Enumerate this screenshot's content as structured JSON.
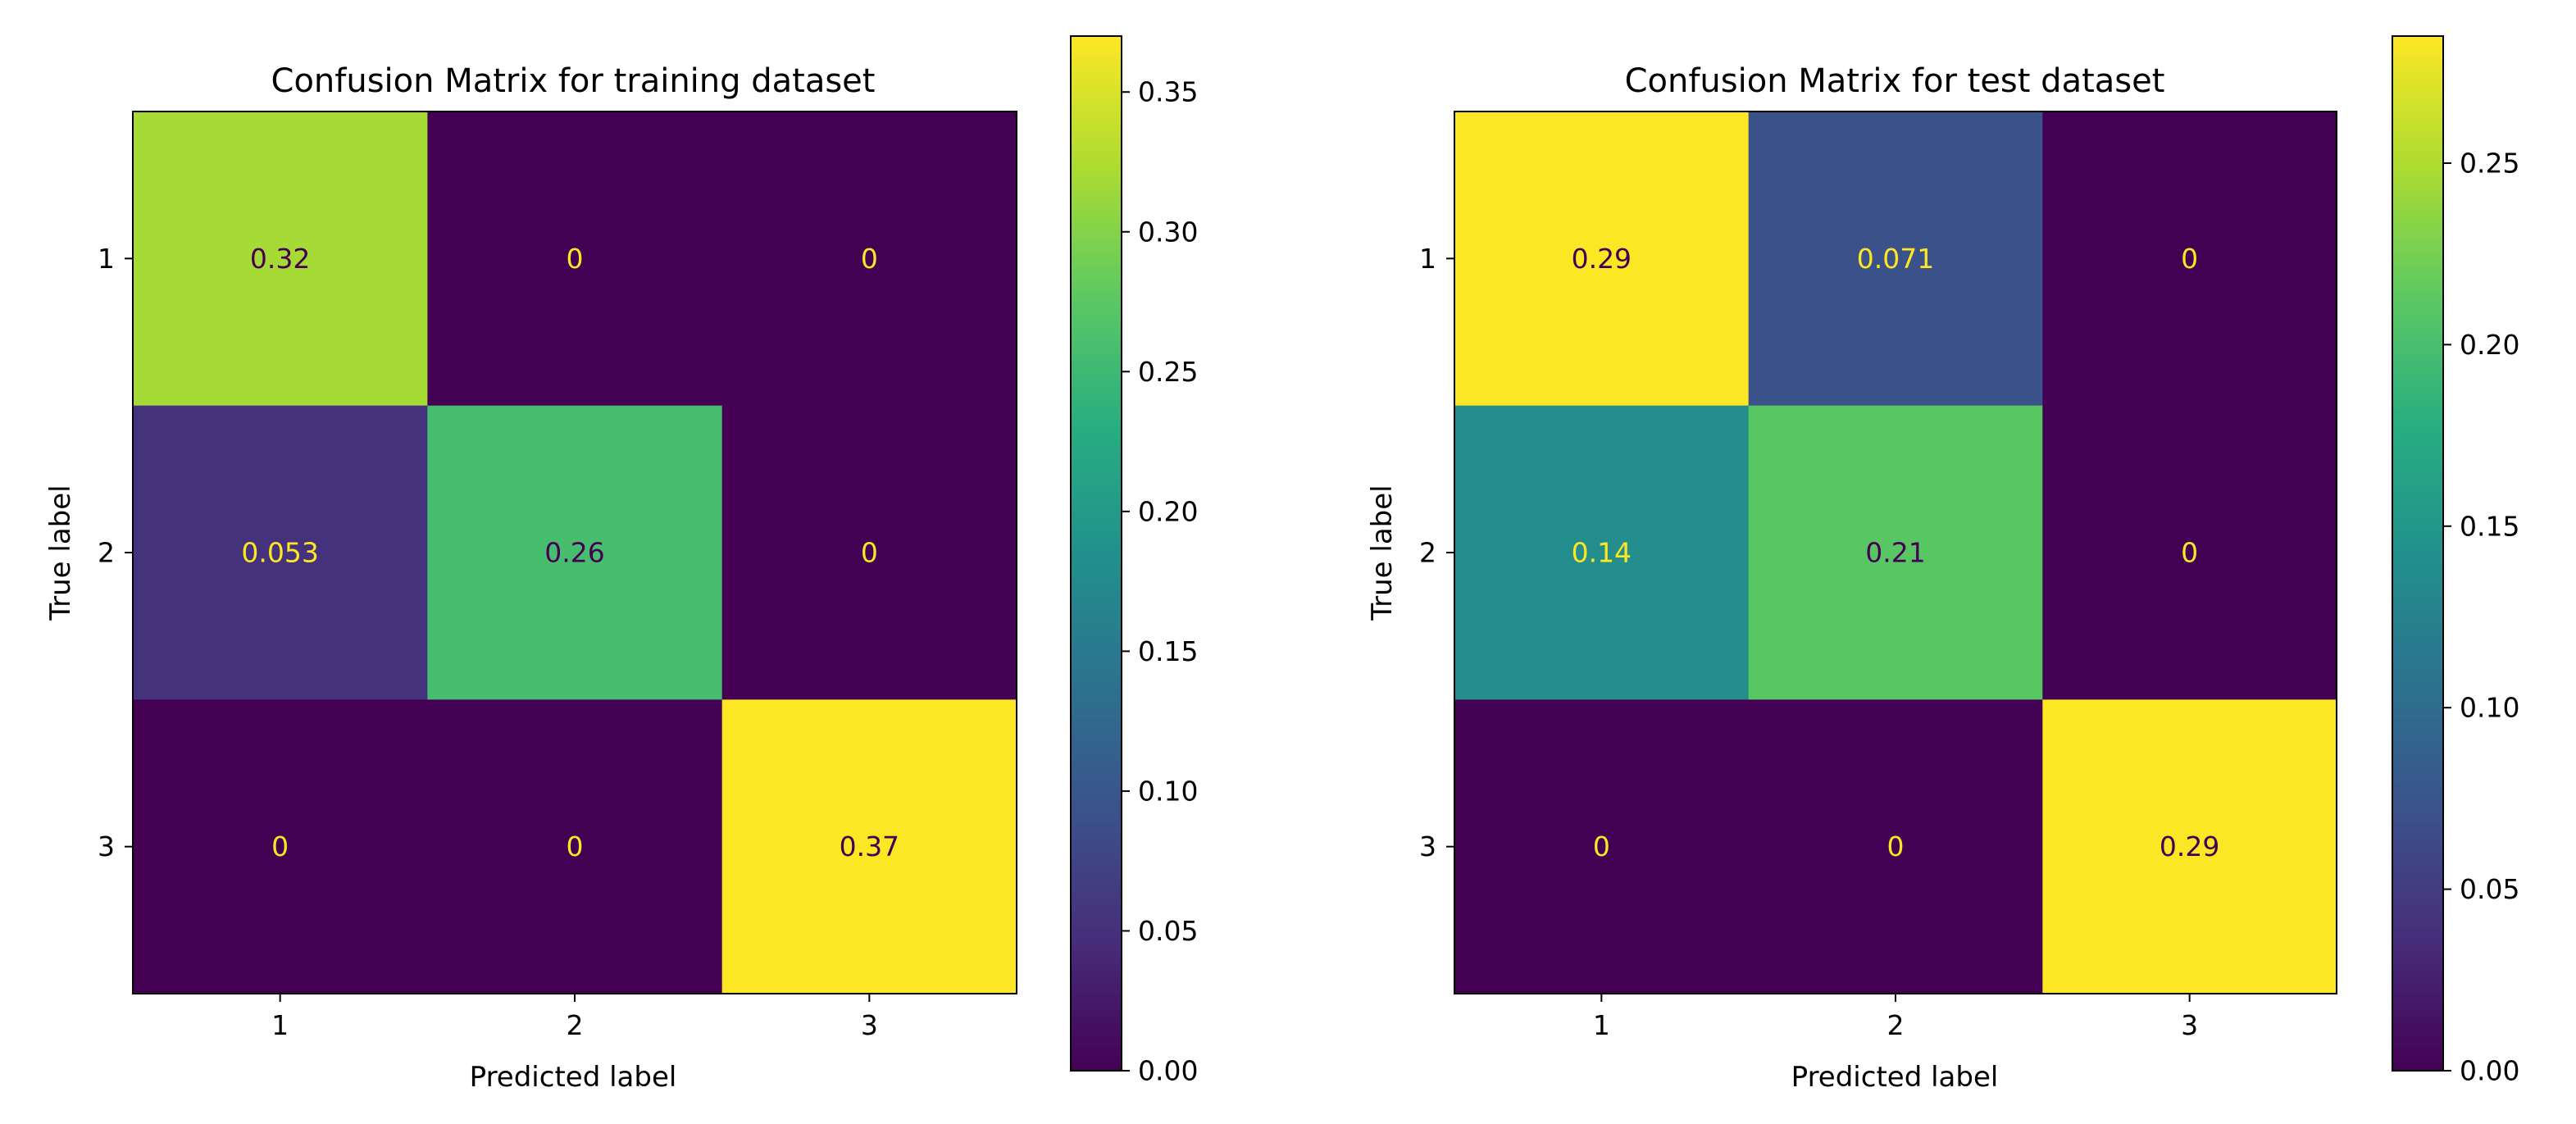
{
  "chart_data": [
    {
      "type": "heatmap",
      "title": "Confusion Matrix for training dataset",
      "xlabel": "Predicted label",
      "ylabel": "True label",
      "x_categories": [
        "1",
        "2",
        "3"
      ],
      "y_categories": [
        "1",
        "2",
        "3"
      ],
      "values": [
        [
          0.32,
          0,
          0
        ],
        [
          0.053,
          0.26,
          0
        ],
        [
          0,
          0,
          0.37
        ]
      ],
      "cell_labels": [
        [
          "0.32",
          "0",
          "0"
        ],
        [
          "0.053",
          "0.26",
          "0"
        ],
        [
          "0",
          "0",
          "0.37"
        ]
      ],
      "colormap": "viridis",
      "colorbar_range": [
        0,
        0.37
      ],
      "colorbar_ticks": [
        0,
        0.05,
        0.1,
        0.15,
        0.2,
        0.25,
        0.3,
        0.35
      ],
      "colorbar_tick_labels": [
        "0.00",
        "0.05",
        "0.10",
        "0.15",
        "0.20",
        "0.25",
        "0.30",
        "0.35"
      ]
    },
    {
      "type": "heatmap",
      "title": "Confusion Matrix for test dataset",
      "xlabel": "Predicted label",
      "ylabel": "True label",
      "x_categories": [
        "1",
        "2",
        "3"
      ],
      "y_categories": [
        "1",
        "2",
        "3"
      ],
      "values": [
        [
          0.29,
          0.071,
          0
        ],
        [
          0.14,
          0.21,
          0
        ],
        [
          0,
          0,
          0.29
        ]
      ],
      "cell_labels": [
        [
          "0.29",
          "0.071",
          "0"
        ],
        [
          "0.14",
          "0.21",
          "0"
        ],
        [
          "0",
          "0",
          "0.29"
        ]
      ],
      "colormap": "viridis",
      "colorbar_range": [
        0,
        0.285
      ],
      "colorbar_ticks": [
        0,
        0.05,
        0.1,
        0.15,
        0.2,
        0.25
      ],
      "colorbar_tick_labels": [
        "0.00",
        "0.05",
        "0.10",
        "0.15",
        "0.20",
        "0.25"
      ]
    }
  ],
  "colors": {
    "text_on_dark": "#fde725",
    "text_on_light": "#440154"
  }
}
